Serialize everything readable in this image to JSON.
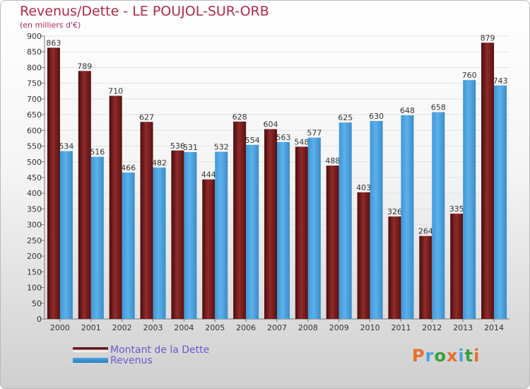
{
  "chart_data": {
    "type": "bar",
    "title": "Revenus/Dette - LE POUJOL-SUR-ORB",
    "subtitle": "(en milliers d'€)",
    "categories": [
      "2000",
      "2001",
      "2002",
      "2003",
      "2004",
      "2005",
      "2006",
      "2007",
      "2008",
      "2009",
      "2010",
      "2011",
      "2012",
      "2013",
      "2014"
    ],
    "series": [
      {
        "name": "Montant de la Dette",
        "color": "#7a1a1a",
        "values": [
          863,
          789,
          710,
          627,
          536,
          444,
          628,
          604,
          548,
          488,
          403,
          326,
          264,
          335,
          879
        ]
      },
      {
        "name": "Revenus",
        "color": "#4aa3e0",
        "values": [
          534,
          516,
          466,
          482,
          531,
          532,
          554,
          563,
          577,
          625,
          630,
          648,
          658,
          760,
          743
        ]
      }
    ],
    "ylim": [
      0,
      900
    ],
    "yticks": [
      0,
      50,
      100,
      150,
      200,
      250,
      300,
      350,
      400,
      450,
      500,
      550,
      600,
      650,
      700,
      750,
      800,
      850,
      900
    ],
    "grid": true,
    "legend_position": "bottom-left"
  },
  "logo": {
    "letters": [
      "P",
      "r",
      "o",
      "x",
      "i",
      "t",
      "i"
    ],
    "colors": [
      "#e8702a",
      "#4aa3e0",
      "#3aa03a",
      "#e8702a",
      "#4aa3e0",
      "#3aa03a",
      "#e8702a"
    ]
  }
}
